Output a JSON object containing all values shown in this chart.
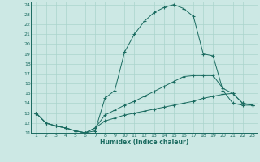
{
  "xlabel": "Humidex (Indice chaleur)",
  "bg_color": "#cce8e4",
  "grid_color": "#aad4cc",
  "line_color": "#1a6b60",
  "xlim": [
    1,
    23
  ],
  "ylim": [
    11,
    24
  ],
  "xticks": [
    1,
    2,
    3,
    4,
    5,
    6,
    7,
    8,
    9,
    10,
    11,
    12,
    13,
    14,
    15,
    16,
    17,
    18,
    19,
    20,
    21,
    22,
    23
  ],
  "yticks": [
    11,
    12,
    13,
    14,
    15,
    16,
    17,
    18,
    19,
    20,
    21,
    22,
    23,
    24
  ],
  "line1_x": [
    1,
    2,
    3,
    4,
    5,
    6,
    7,
    8,
    9,
    10,
    11,
    12,
    13,
    14,
    15,
    16,
    17,
    18,
    19,
    20,
    21,
    22,
    23
  ],
  "line1_y": [
    13,
    12,
    11.7,
    11.5,
    11.2,
    11,
    11.2,
    14.5,
    15.3,
    19.2,
    21,
    22.3,
    23.2,
    23.7,
    24,
    23.6,
    22.8,
    19,
    18.8,
    15.3,
    14,
    13.8,
    13.8
  ],
  "line2_x": [
    1,
    2,
    3,
    4,
    5,
    6,
    7,
    8,
    9,
    10,
    11,
    12,
    13,
    14,
    15,
    16,
    17,
    18,
    19,
    20,
    21,
    22,
    23
  ],
  "line2_y": [
    13,
    12,
    11.7,
    11.5,
    11.2,
    11,
    11.5,
    12.8,
    13.3,
    13.8,
    14.2,
    14.7,
    15.2,
    15.7,
    16.2,
    16.7,
    16.8,
    16.8,
    16.8,
    15.5,
    15,
    14,
    13.8
  ],
  "line3_x": [
    1,
    2,
    3,
    4,
    5,
    6,
    7,
    8,
    9,
    10,
    11,
    12,
    13,
    14,
    15,
    16,
    17,
    18,
    19,
    20,
    21,
    22,
    23
  ],
  "line3_y": [
    13,
    12,
    11.7,
    11.5,
    11.2,
    11,
    11.5,
    12.2,
    12.5,
    12.8,
    13.0,
    13.2,
    13.4,
    13.6,
    13.8,
    14.0,
    14.2,
    14.5,
    14.7,
    14.9,
    15.0,
    14.0,
    13.8
  ]
}
